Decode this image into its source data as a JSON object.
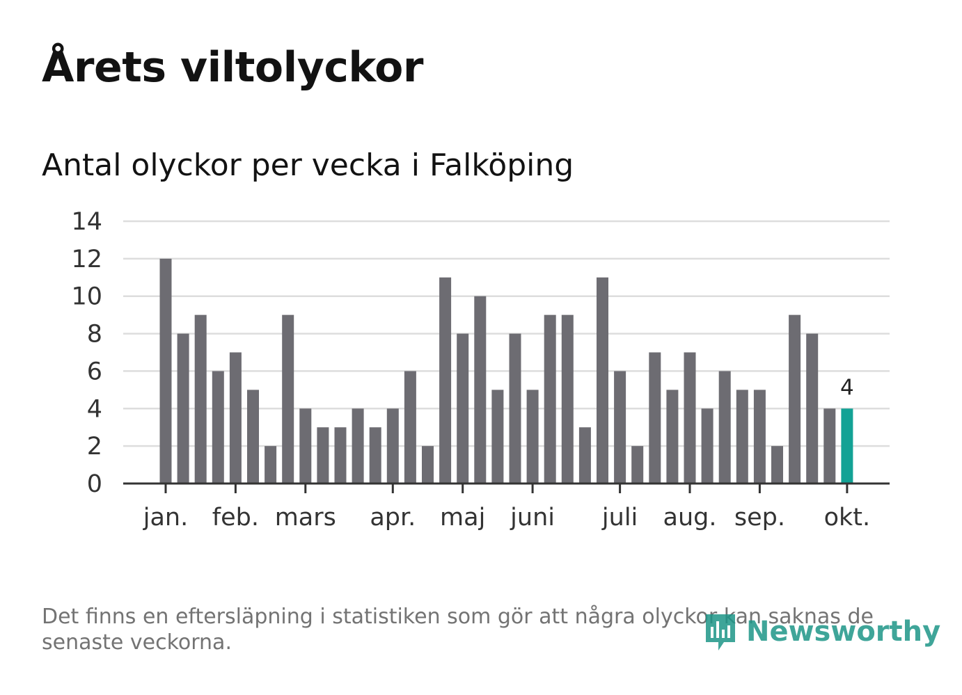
{
  "header": {
    "title": "Årets viltolyckor",
    "subtitle": "Antal olyckor per vecka i Falköping"
  },
  "colors": {
    "bar": "#6d6c72",
    "highlight": "#13a295",
    "grid": "#dddddd",
    "axis": "#333333"
  },
  "chart_data": {
    "type": "bar",
    "title": "Antal olyckor per vecka i Falköping",
    "xlabel": "",
    "ylabel": "",
    "ylim": [
      0,
      14
    ],
    "yticks": [
      0,
      2,
      4,
      6,
      8,
      10,
      12,
      14
    ],
    "values": [
      12,
      8,
      9,
      6,
      7,
      5,
      2,
      9,
      4,
      3,
      3,
      4,
      3,
      4,
      6,
      2,
      11,
      8,
      10,
      5,
      8,
      5,
      9,
      9,
      3,
      11,
      6,
      2,
      7,
      5,
      7,
      4,
      6,
      5,
      5,
      2,
      9,
      8,
      4,
      4
    ],
    "highlight_index": 39,
    "highlight_label": "4",
    "month_labels": [
      {
        "label": "jan.",
        "week_index": 0
      },
      {
        "label": "feb.",
        "week_index": 4
      },
      {
        "label": "mars",
        "week_index": 8
      },
      {
        "label": "apr.",
        "week_index": 13
      },
      {
        "label": "maj",
        "week_index": 17
      },
      {
        "label": "juni",
        "week_index": 21
      },
      {
        "label": "juli",
        "week_index": 26
      },
      {
        "label": "aug.",
        "week_index": 30
      },
      {
        "label": "sep.",
        "week_index": 34
      },
      {
        "label": "okt.",
        "week_index": 39
      }
    ]
  },
  "footer": {
    "note": "Det finns en eftersläpning i statistiken som gör att några olyckor kan saknas de senaste veckorna.",
    "brand": "Newsworthy",
    "brand_icon": "newsworthy-logo-icon"
  }
}
